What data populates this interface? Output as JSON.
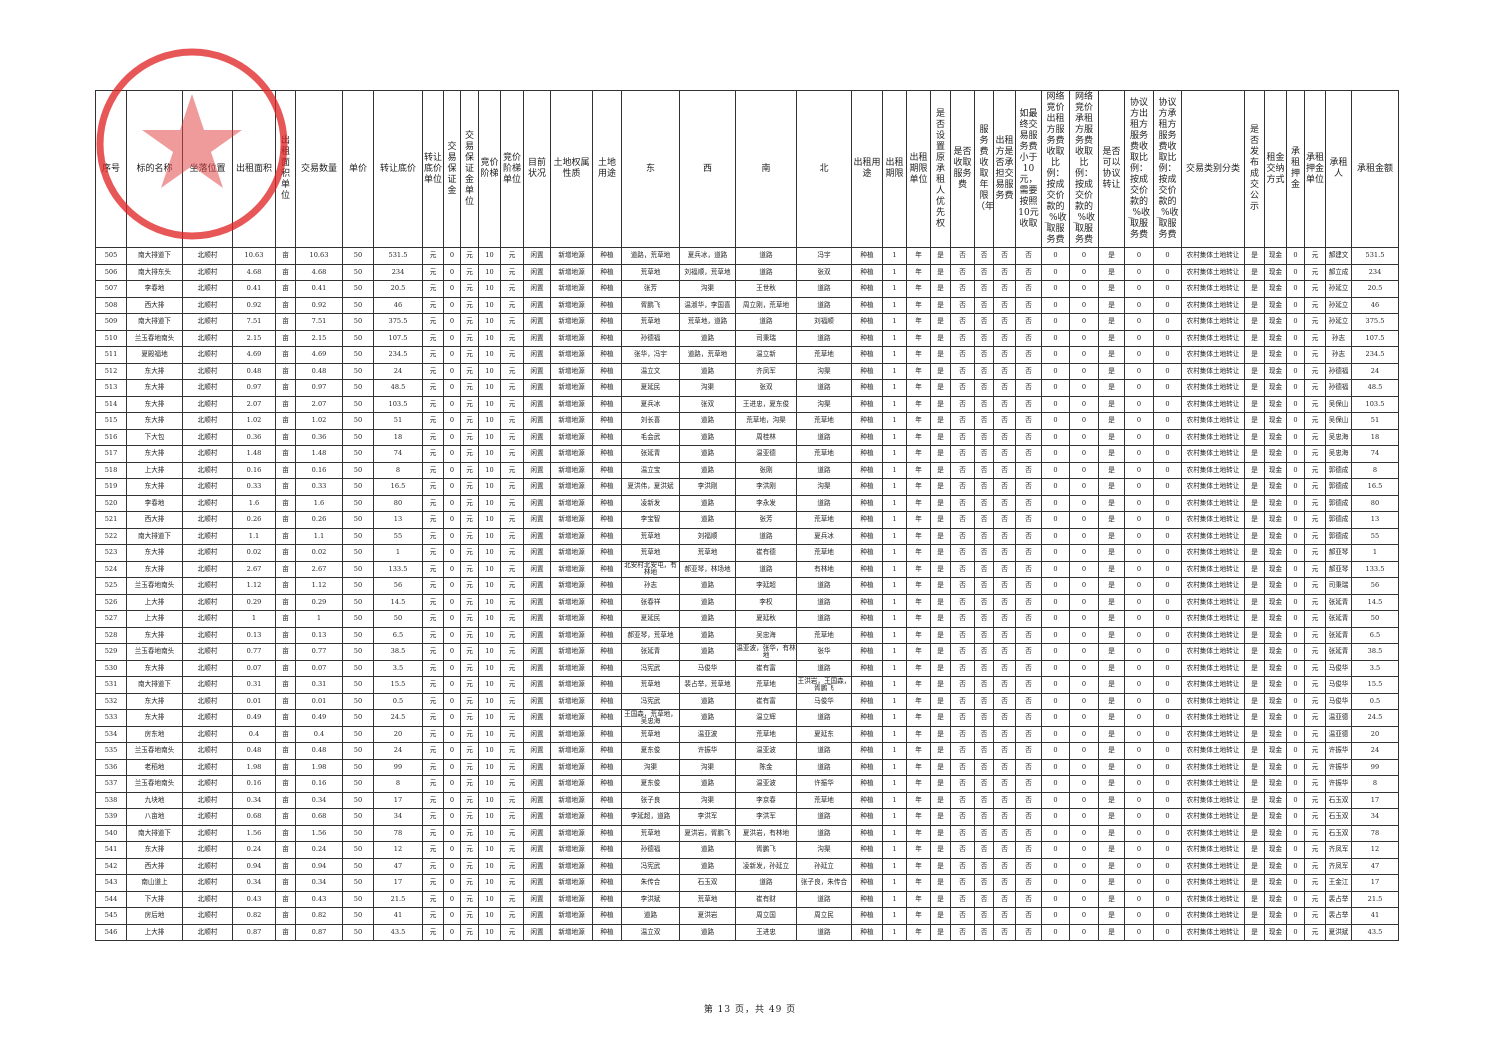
{
  "headers": [
    "序号",
    "标的名称",
    "坐落位置",
    "出租面积",
    "出租面积单位",
    "交易数量",
    "单价",
    "转让底价",
    "转让底价单位",
    "交易保证金",
    "交易保证金单位",
    "竞价阶梯",
    "竞价阶梯单位",
    "目前状况",
    "土地权属性质",
    "土地用途",
    "东",
    "西",
    "南",
    "北",
    "出租用途",
    "出租期限",
    "出租期限单位",
    "是否设置原承租人优先权",
    "是否收取服务费",
    "服务费收取年限（年）",
    "出租方是否承担交易服务费",
    "如最终交易服务费小于10元，需要按照10元收取",
    "网络竞价出租方服务费收取比例：按成交价款的_%收取服务费",
    "网络竞价承租方服务费收取比例：按成交价款的_%收取服务费",
    "是否可以协议转让",
    "协议方出租方服务费收取比例：按成交价款的_%收取服务费",
    "协议方承租方服务费收取比例：按成交价款的_%收取服务费",
    "交易类别分类",
    "是否发布成交公示",
    "租金交纳方式",
    "承租押金",
    "承租押金单位",
    "承租人",
    "承租金额"
  ],
  "constants": {
    "location": "北顺村",
    "area_unit": "亩",
    "unit_price": "50",
    "currency": "元",
    "deposit": "0",
    "bid_step": "10",
    "status": "闲置",
    "ownership": "新增地源",
    "land_use": "种植",
    "term": "1",
    "term_unit": "年",
    "yes": "是",
    "no": "否",
    "zero": "0",
    "category": "农村集体土地转让",
    "payment": "现金"
  },
  "row_fields": [
    "序号",
    "标的名称",
    "出租面积",
    "交易数量",
    "转让底价",
    "东",
    "西",
    "南",
    "北",
    "承租人",
    "承租金额"
  ],
  "rows": [
    [
      "505",
      "南大排道下",
      "10.63",
      "10.63",
      "531.5",
      "道路，荒草地",
      "夏兵冰，道路",
      "道路",
      "冯宇",
      "郝建文",
      "531.5"
    ],
    [
      "506",
      "南大排东头",
      "4.68",
      "4.68",
      "234",
      "荒草地",
      "刘福顺，荒草地",
      "道路",
      "张双",
      "郝立成",
      "234"
    ],
    [
      "507",
      "李春地",
      "0.41",
      "0.41",
      "20.5",
      "张芳",
      "沟渠",
      "王世秋",
      "道路",
      "孙延立",
      "20.5"
    ],
    [
      "508",
      "西大排",
      "0.92",
      "0.92",
      "46",
      "胥鹏飞",
      "温淑华，李国喜",
      "周立刚，荒草地",
      "道路",
      "孙延立",
      "46"
    ],
    [
      "509",
      "南大排道下",
      "7.51",
      "7.51",
      "375.5",
      "荒草地",
      "荒草地，道路",
      "道路",
      "刘福顺",
      "孙延立",
      "375.5"
    ],
    [
      "510",
      "兰玉春地南头",
      "2.15",
      "2.15",
      "107.5",
      "孙德福",
      "道路",
      "司秉瑞",
      "道路",
      "孙志",
      "107.5"
    ],
    [
      "511",
      "夏殿福地",
      "4.69",
      "4.69",
      "234.5",
      "张华，冯宇",
      "道路，荒草地",
      "温立新",
      "荒草地",
      "孙志",
      "234.5"
    ],
    [
      "512",
      "东大排",
      "0.48",
      "0.48",
      "24",
      "温立文",
      "道路",
      "齐凤军",
      "沟渠",
      "孙德福",
      "24"
    ],
    [
      "513",
      "东大排",
      "0.97",
      "0.97",
      "48.5",
      "夏延民",
      "沟渠",
      "张双",
      "道路",
      "孙德福",
      "48.5"
    ],
    [
      "514",
      "东大排",
      "2.07",
      "2.07",
      "103.5",
      "夏兵冰",
      "张双",
      "王进忠，夏东俊",
      "沟渠",
      "吴保山",
      "103.5"
    ],
    [
      "515",
      "东大排",
      "1.02",
      "1.02",
      "51",
      "刘长喜",
      "道路",
      "荒草地，沟渠",
      "荒草地",
      "吴保山",
      "51"
    ],
    [
      "516",
      "下大包",
      "0.36",
      "0.36",
      "18",
      "毛会武",
      "道路",
      "周桂林",
      "道路",
      "吴忠海",
      "18"
    ],
    [
      "517",
      "东大排",
      "1.48",
      "1.48",
      "74",
      "张延青",
      "道路",
      "温亚德",
      "荒草地",
      "吴忠海",
      "74"
    ],
    [
      "518",
      "上大排",
      "0.16",
      "0.16",
      "8",
      "温立宝",
      "道路",
      "张刚",
      "道路",
      "郭德成",
      "8"
    ],
    [
      "519",
      "东大排",
      "0.33",
      "0.33",
      "16.5",
      "夏洪伟，夏洪斌",
      "李洪刚",
      "李洪刚",
      "沟渠",
      "郭德成",
      "16.5"
    ],
    [
      "520",
      "李春地",
      "1.6",
      "1.6",
      "80",
      "凌新发",
      "道路",
      "李永发",
      "道路",
      "郭德成",
      "80"
    ],
    [
      "521",
      "西大排",
      "0.26",
      "0.26",
      "13",
      "李宝智",
      "道路",
      "张芳",
      "荒草地",
      "郭德成",
      "13"
    ],
    [
      "522",
      "南大排道下",
      "1.1",
      "1.1",
      "55",
      "荒草地",
      "刘福顺",
      "道路",
      "夏兵冰",
      "郭德成",
      "55"
    ],
    [
      "523",
      "东大排",
      "0.02",
      "0.02",
      "1",
      "荒草地",
      "荒草地",
      "崔有德",
      "荒草地",
      "郝亚琴",
      "1"
    ],
    [
      "524",
      "东大排",
      "2.67",
      "2.67",
      "133.5",
      "北安村北安屯，有林地",
      "郝亚琴，林场地",
      "道路",
      "有林地",
      "郝亚琴",
      "133.5"
    ],
    [
      "525",
      "兰玉春地南头",
      "1.12",
      "1.12",
      "56",
      "孙志",
      "道路",
      "李延超",
      "道路",
      "司秉瑞",
      "56"
    ],
    [
      "526",
      "上大排",
      "0.29",
      "0.29",
      "14.5",
      "张春祥",
      "道路",
      "李权",
      "道路",
      "张延青",
      "14.5"
    ],
    [
      "527",
      "上大排",
      "1",
      "1",
      "50",
      "夏延民",
      "道路",
      "夏延秋",
      "道路",
      "张延青",
      "50"
    ],
    [
      "528",
      "东大排",
      "0.13",
      "0.13",
      "6.5",
      "郝亚琴，荒草地",
      "道路",
      "吴忠海",
      "荒草地",
      "张延青",
      "6.5"
    ],
    [
      "529",
      "兰玉春地南头",
      "0.77",
      "0.77",
      "38.5",
      "张延青",
      "道路",
      "温亚波，张华，有林地",
      "张华",
      "张延青",
      "38.5"
    ],
    [
      "530",
      "东大排",
      "0.07",
      "0.07",
      "3.5",
      "冯宪武",
      "马俊华",
      "崔有富",
      "道路",
      "马俊华",
      "3.5"
    ],
    [
      "531",
      "南大排道下",
      "0.31",
      "0.31",
      "15.5",
      "荒草地",
      "裴占举，荒草地",
      "荒草地",
      "王洪岩，王国森，胥鹏飞",
      "马俊华",
      "15.5"
    ],
    [
      "532",
      "东大排",
      "0.01",
      "0.01",
      "0.5",
      "冯宪武",
      "道路",
      "崔有富",
      "马俊华",
      "马俊华",
      "0.5"
    ],
    [
      "533",
      "东大排",
      "0.49",
      "0.49",
      "24.5",
      "王国森，荒草地，吴忠海",
      "道路",
      "温立辉",
      "道路",
      "温亚德",
      "24.5"
    ],
    [
      "534",
      "房东地",
      "0.4",
      "0.4",
      "20",
      "荒草地",
      "温亚波",
      "荒草地",
      "夏延东",
      "温亚德",
      "20"
    ],
    [
      "535",
      "兰玉春地南头",
      "0.48",
      "0.48",
      "24",
      "夏东俊",
      "许振华",
      "温亚波",
      "道路",
      "许振华",
      "24"
    ],
    [
      "536",
      "老稻地",
      "1.98",
      "1.98",
      "99",
      "沟渠",
      "沟渠",
      "陈金",
      "道路",
      "许振华",
      "99"
    ],
    [
      "537",
      "兰玉春地南头",
      "0.16",
      "0.16",
      "8",
      "夏东俊",
      "道路",
      "温亚波",
      "许振华",
      "许振华",
      "8"
    ],
    [
      "538",
      "九块地",
      "0.34",
      "0.34",
      "17",
      "张子良",
      "沟渠",
      "李京春",
      "荒草地",
      "石玉双",
      "17"
    ],
    [
      "539",
      "八亩地",
      "0.68",
      "0.68",
      "34",
      "李延超，道路",
      "李洪军",
      "李洪军",
      "道路",
      "石玉双",
      "34"
    ],
    [
      "540",
      "南大排道下",
      "1.56",
      "1.56",
      "78",
      "荒草地",
      "夏洪岩，胥鹏飞",
      "夏洪岩，有林地",
      "道路",
      "石玉双",
      "78"
    ],
    [
      "541",
      "东大排",
      "0.24",
      "0.24",
      "12",
      "孙德福",
      "道路",
      "胥鹏飞",
      "沟渠",
      "齐凤军",
      "12"
    ],
    [
      "542",
      "西大排",
      "0.94",
      "0.94",
      "47",
      "冯宪武",
      "道路",
      "凌新发，孙延立",
      "孙延立",
      "齐凤军",
      "47"
    ],
    [
      "543",
      "南山道上",
      "0.34",
      "0.34",
      "17",
      "朱传合",
      "石玉双",
      "道路",
      "张子良，朱传合",
      "王金江",
      "17"
    ],
    [
      "544",
      "下大排",
      "0.43",
      "0.43",
      "21.5",
      "李洪斌",
      "荒草地",
      "崔有财",
      "道路",
      "裴占举",
      "21.5"
    ],
    [
      "545",
      "房后地",
      "0.82",
      "0.82",
      "41",
      "道路",
      "夏洪岩",
      "周立国",
      "周立民",
      "裴占举",
      "41"
    ],
    [
      "546",
      "上大排",
      "0.87",
      "0.87",
      "43.5",
      "温立双",
      "道路",
      "王进忠",
      "道路",
      "夏洪斌",
      "43.5"
    ]
  ],
  "footer": {
    "page_label": "第 13 页，共 49 页"
  },
  "stamp": {
    "color": "#e02020",
    "icon": "star-icon"
  }
}
